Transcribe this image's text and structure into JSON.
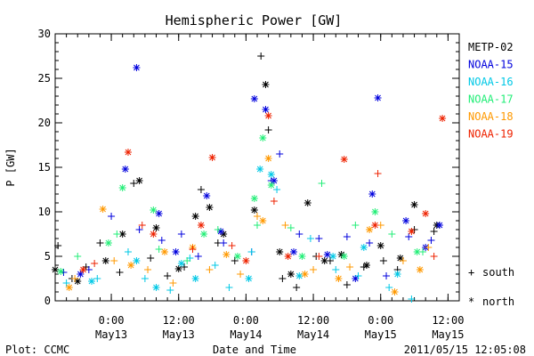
{
  "footer": {
    "plot_credit": "Plot: CCMC",
    "timestamp": "2011/05/15 12:05:08"
  },
  "marker_key": {
    "south_symbol": "+",
    "south_label": "south",
    "north_symbol": "*",
    "north_label": "north"
  },
  "chart_data": {
    "type": "scatter",
    "title": "Hemispheric Power [GW]",
    "xlabel": "Date and Time",
    "ylabel": "P [GW]",
    "xlim": [
      "2011-05-12T14:00",
      "2011-05-15T14:00"
    ],
    "ylim": [
      0,
      30
    ],
    "y_ticks": [
      0,
      5,
      10,
      15,
      20,
      25,
      30
    ],
    "y_tick_labels": [
      "0",
      "5",
      "10",
      "15",
      "20",
      "25",
      "30"
    ],
    "x_ticks": [
      {
        "t": "2011-05-13T00:00",
        "time": "0:00",
        "date": "May13"
      },
      {
        "t": "2011-05-13T12:00",
        "time": "12:00",
        "date": "May13"
      },
      {
        "t": "2011-05-14T00:00",
        "time": "0:00",
        "date": "May14"
      },
      {
        "t": "2011-05-14T12:00",
        "time": "12:00",
        "date": "May14"
      },
      {
        "t": "2011-05-15T00:00",
        "time": "0:00",
        "date": "May15"
      },
      {
        "t": "2011-05-15T12:00",
        "time": "12:00",
        "date": "May15"
      }
    ],
    "grid": false,
    "legend_position": "right",
    "series": [
      {
        "name": "METP-02",
        "color": "#000000",
        "south": [
          [
            "2011-05-12T14:30",
            6.2
          ],
          [
            "2011-05-12T17:00",
            2.5
          ],
          [
            "2011-05-12T19:30",
            3.8
          ],
          [
            "2011-05-12T22:00",
            6.5
          ],
          [
            "2011-05-13T01:30",
            3.2
          ],
          [
            "2011-05-13T04:00",
            13.2
          ],
          [
            "2011-05-13T07:00",
            4.8
          ],
          [
            "2011-05-13T10:00",
            2.8
          ],
          [
            "2011-05-13T13:00",
            3.8
          ],
          [
            "2011-05-13T16:00",
            12.5
          ],
          [
            "2011-05-13T19:00",
            6.5
          ],
          [
            "2011-05-13T22:00",
            4.5
          ],
          [
            "2011-05-14T02:40",
            27.5
          ],
          [
            "2011-05-14T04:00",
            19.2
          ],
          [
            "2011-05-14T06:30",
            2.5
          ],
          [
            "2011-05-14T09:00",
            1.5
          ],
          [
            "2011-05-14T12:30",
            5.0
          ],
          [
            "2011-05-14T15:00",
            4.5
          ],
          [
            "2011-05-14T18:00",
            1.8
          ],
          [
            "2011-05-14T21:00",
            3.8
          ],
          [
            "2011-05-15T00:30",
            4.5
          ],
          [
            "2011-05-15T03:00",
            3.5
          ],
          [
            "2011-05-15T06:00",
            8.0
          ],
          [
            "2011-05-15T09:30",
            7.8
          ]
        ],
        "north": [
          [
            "2011-05-12T14:00",
            3.5
          ],
          [
            "2011-05-12T18:00",
            2.2
          ],
          [
            "2011-05-12T23:00",
            4.5
          ],
          [
            "2011-05-13T02:00",
            7.5
          ],
          [
            "2011-05-13T05:00",
            13.5
          ],
          [
            "2011-05-13T08:00",
            8.2
          ],
          [
            "2011-05-13T12:00",
            3.6
          ],
          [
            "2011-05-13T15:00",
            9.5
          ],
          [
            "2011-05-13T17:30",
            10.5
          ],
          [
            "2011-05-13T20:00",
            7.5
          ],
          [
            "2011-05-14T01:30",
            10.2
          ],
          [
            "2011-05-14T03:30",
            24.3
          ],
          [
            "2011-05-14T06:00",
            5.5
          ],
          [
            "2011-05-14T08:00",
            3.0
          ],
          [
            "2011-05-14T11:00",
            11.0
          ],
          [
            "2011-05-14T14:00",
            4.5
          ],
          [
            "2011-05-14T17:00",
            5.2
          ],
          [
            "2011-05-14T21:30",
            4.0
          ],
          [
            "2011-05-15T00:00",
            6.2
          ],
          [
            "2011-05-15T03:30",
            4.8
          ],
          [
            "2011-05-15T06:00",
            10.8
          ],
          [
            "2011-05-15T10:00",
            8.5
          ]
        ]
      },
      {
        "name": "NOAA-15",
        "color": "#0000dd",
        "south": [
          [
            "2011-05-12T15:30",
            3.2
          ],
          [
            "2011-05-12T20:00",
            3.5
          ],
          [
            "2011-05-13T00:00",
            9.5
          ],
          [
            "2011-05-13T05:00",
            8.0
          ],
          [
            "2011-05-13T09:00",
            6.8
          ],
          [
            "2011-05-13T12:30",
            7.5
          ],
          [
            "2011-05-13T15:30",
            5.0
          ],
          [
            "2011-05-13T20:00",
            6.5
          ],
          [
            "2011-05-14T01:00",
            5.5
          ],
          [
            "2011-05-14T04:30",
            13.5
          ],
          [
            "2011-05-14T06:00",
            16.5
          ],
          [
            "2011-05-14T09:30",
            7.5
          ],
          [
            "2011-05-14T13:00",
            7.0
          ],
          [
            "2011-05-14T18:00",
            7.2
          ],
          [
            "2011-05-14T22:00",
            6.5
          ],
          [
            "2011-05-15T01:00",
            2.8
          ],
          [
            "2011-05-15T05:00",
            7.2
          ],
          [
            "2011-05-15T09:00",
            6.8
          ]
        ],
        "north": [
          [
            "2011-05-12T18:30",
            3.0
          ],
          [
            "2011-05-13T02:30",
            14.8
          ],
          [
            "2011-05-13T04:30",
            26.2
          ],
          [
            "2011-05-13T08:30",
            9.8
          ],
          [
            "2011-05-13T11:30",
            5.5
          ],
          [
            "2011-05-13T17:00",
            11.8
          ],
          [
            "2011-05-13T19:30",
            7.8
          ],
          [
            "2011-05-14T01:30",
            22.7
          ],
          [
            "2011-05-14T03:30",
            21.5
          ],
          [
            "2011-05-14T05:00",
            13.5
          ],
          [
            "2011-05-14T08:30",
            5.5
          ],
          [
            "2011-05-14T14:30",
            5.2
          ],
          [
            "2011-05-14T19:30",
            2.5
          ],
          [
            "2011-05-14T22:30",
            12.0
          ],
          [
            "2011-05-14T23:30",
            22.8
          ],
          [
            "2011-05-15T04:30",
            9.0
          ],
          [
            "2011-05-15T08:00",
            6.0
          ],
          [
            "2011-05-15T10:30",
            8.5
          ]
        ]
      },
      {
        "name": "NOAA-16",
        "color": "#00c8e6",
        "south": [
          [
            "2011-05-12T16:00",
            2.0
          ],
          [
            "2011-05-12T21:30",
            2.5
          ],
          [
            "2011-05-13T03:00",
            5.5
          ],
          [
            "2011-05-13T06:00",
            2.5
          ],
          [
            "2011-05-13T10:30",
            1.2
          ],
          [
            "2011-05-13T14:00",
            4.8
          ],
          [
            "2011-05-13T18:30",
            4.0
          ],
          [
            "2011-05-13T21:00",
            1.5
          ],
          [
            "2011-05-14T01:00",
            5.5
          ],
          [
            "2011-05-14T05:30",
            12.5
          ],
          [
            "2011-05-14T11:30",
            7.0
          ],
          [
            "2011-05-14T16:00",
            3.5
          ],
          [
            "2011-05-14T20:00",
            2.8
          ],
          [
            "2011-05-15T01:30",
            1.5
          ],
          [
            "2011-05-15T05:30",
            0.2
          ]
        ],
        "north": [
          [
            "2011-05-12T20:30",
            2.2
          ],
          [
            "2011-05-13T04:30",
            4.5
          ],
          [
            "2011-05-13T08:00",
            1.5
          ],
          [
            "2011-05-13T12:30",
            4.2
          ],
          [
            "2011-05-13T15:00",
            2.5
          ],
          [
            "2011-05-14T00:30",
            2.5
          ],
          [
            "2011-05-14T02:30",
            14.8
          ],
          [
            "2011-05-14T04:30",
            14.2
          ],
          [
            "2011-05-14T09:30",
            2.8
          ],
          [
            "2011-05-14T15:30",
            5.0
          ],
          [
            "2011-05-14T21:00",
            6.0
          ],
          [
            "2011-05-15T03:00",
            3.0
          ]
        ]
      },
      {
        "name": "NOAA-17",
        "color": "#22ee77",
        "south": [
          [
            "2011-05-12T18:00",
            5.0
          ],
          [
            "2011-05-13T01:00",
            7.5
          ],
          [
            "2011-05-13T08:30",
            5.8
          ],
          [
            "2011-05-13T13:30",
            4.5
          ],
          [
            "2011-05-13T19:00",
            8.0
          ],
          [
            "2011-05-14T02:00",
            8.5
          ],
          [
            "2011-05-14T08:00",
            8.2
          ],
          [
            "2011-05-14T13:30",
            13.2
          ],
          [
            "2011-05-14T19:30",
            8.5
          ],
          [
            "2011-05-15T02:00",
            7.5
          ],
          [
            "2011-05-15T07:30",
            5.5
          ]
        ],
        "north": [
          [
            "2011-05-12T15:00",
            3.3
          ],
          [
            "2011-05-12T23:30",
            6.5
          ],
          [
            "2011-05-13T02:00",
            12.7
          ],
          [
            "2011-05-13T07:30",
            10.2
          ],
          [
            "2011-05-13T16:30",
            7.5
          ],
          [
            "2011-05-13T22:30",
            5.0
          ],
          [
            "2011-05-14T01:30",
            11.5
          ],
          [
            "2011-05-14T03:00",
            18.3
          ],
          [
            "2011-05-14T04:30",
            13.0
          ],
          [
            "2011-05-14T10:00",
            5.0
          ],
          [
            "2011-05-14T17:30",
            5.0
          ],
          [
            "2011-05-14T23:00",
            10.0
          ],
          [
            "2011-05-15T06:30",
            5.5
          ]
        ]
      },
      {
        "name": "NOAA-18",
        "color": "#ff9900",
        "south": [
          [
            "2011-05-12T17:30",
            2.5
          ],
          [
            "2011-05-13T00:30",
            4.5
          ],
          [
            "2011-05-13T06:30",
            3.5
          ],
          [
            "2011-05-13T11:00",
            2.0
          ],
          [
            "2011-05-13T17:30",
            3.5
          ],
          [
            "2011-05-13T23:00",
            3.0
          ],
          [
            "2011-05-14T02:00",
            9.5
          ],
          [
            "2011-05-14T07:00",
            8.5
          ],
          [
            "2011-05-14T12:00",
            3.5
          ],
          [
            "2011-05-14T18:30",
            3.8
          ],
          [
            "2011-05-15T00:00",
            8.5
          ],
          [
            "2011-05-15T04:00",
            4.5
          ],
          [
            "2011-05-15T08:30",
            6.0
          ]
        ],
        "north": [
          [
            "2011-05-12T16:30",
            1.5
          ],
          [
            "2011-05-12T22:30",
            10.3
          ],
          [
            "2011-05-13T03:30",
            4.0
          ],
          [
            "2011-05-13T09:30",
            5.5
          ],
          [
            "2011-05-13T14:30",
            6.0
          ],
          [
            "2011-05-13T20:30",
            5.2
          ],
          [
            "2011-05-14T03:00",
            9.0
          ],
          [
            "2011-05-14T04:00",
            16.0
          ],
          [
            "2011-05-14T10:30",
            3.0
          ],
          [
            "2011-05-14T16:30",
            2.5
          ],
          [
            "2011-05-14T22:00",
            8.0
          ],
          [
            "2011-05-15T02:30",
            1.0
          ],
          [
            "2011-05-15T07:00",
            3.5
          ]
        ]
      },
      {
        "name": "NOAA-19",
        "color": "#ee2200",
        "south": [
          [
            "2011-05-12T21:00",
            4.2
          ],
          [
            "2011-05-13T05:30",
            8.5
          ],
          [
            "2011-05-13T14:30",
            5.8
          ],
          [
            "2011-05-13T21:30",
            6.2
          ],
          [
            "2011-05-14T05:00",
            11.2
          ],
          [
            "2011-05-14T13:00",
            5.0
          ],
          [
            "2011-05-14T23:30",
            14.3
          ],
          [
            "2011-05-15T09:30",
            5.0
          ]
        ],
        "north": [
          [
            "2011-05-12T19:00",
            3.5
          ],
          [
            "2011-05-13T03:00",
            16.7
          ],
          [
            "2011-05-13T07:30",
            7.5
          ],
          [
            "2011-05-13T16:00",
            8.5
          ],
          [
            "2011-05-13T18:00",
            16.1
          ],
          [
            "2011-05-14T00:00",
            4.5
          ],
          [
            "2011-05-14T04:00",
            20.8
          ],
          [
            "2011-05-14T07:30",
            5.0
          ],
          [
            "2011-05-14T17:30",
            15.9
          ],
          [
            "2011-05-14T23:00",
            8.5
          ],
          [
            "2011-05-15T05:30",
            7.8
          ],
          [
            "2011-05-15T08:00",
            9.8
          ],
          [
            "2011-05-15T11:00",
            20.5
          ]
        ]
      }
    ]
  }
}
